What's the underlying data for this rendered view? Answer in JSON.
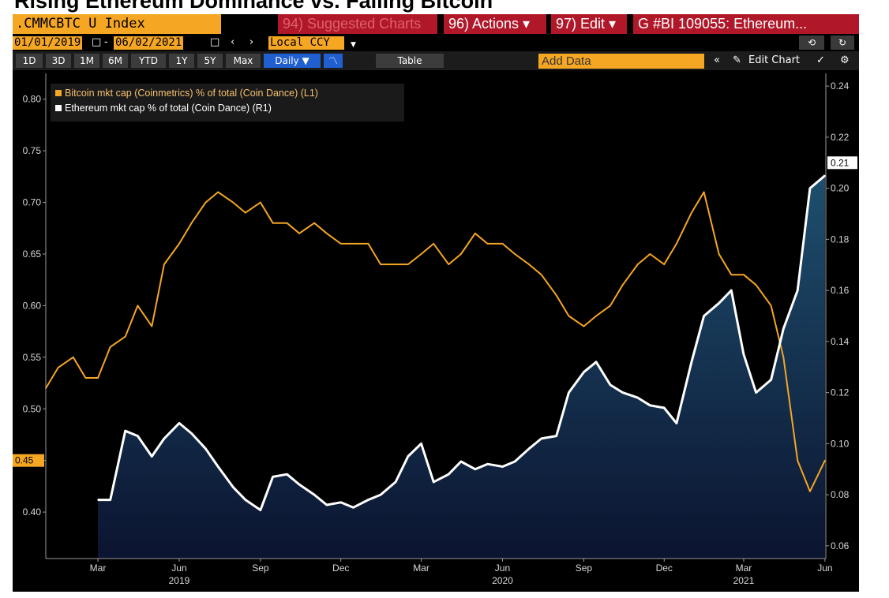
{
  "headline": "Rising Ethereum Dominance vs. Falling Bitcoin",
  "toolbar": {
    "ticker": ".CMMCBTC U Index",
    "suggested": "94) Suggested Charts",
    "actions": "96) Actions ▾",
    "edit": "97) Edit ▾",
    "title": "G #BI 109055: Ethereum..."
  },
  "dates": {
    "start": "01/01/2019",
    "end": "06/02/2021",
    "currency": "Local CCY",
    "back": "⟲",
    "fwd": "↻"
  },
  "periods": [
    "1D",
    "3D",
    "1M",
    "6M",
    "YTD",
    "1Y",
    "5Y",
    "Max"
  ],
  "frequency": "Daily ▼",
  "table_label": "Table",
  "add_data_placeholder": "Add Data",
  "edit_chart": "Edit Chart",
  "legend": {
    "btc": "Bitcoin mkt cap (Coinmetrics) % of total (Coin Dance) (L1)",
    "eth": "Ethereum mkt cap % of total (Coin Dance) (R1)"
  },
  "colors": {
    "btc": "#f5a623",
    "eth": "#ffffff",
    "fill_top": "#1e4f6e",
    "fill_bottom": "#0b1430",
    "accent": "#b0182a"
  },
  "chart_data": {
    "type": "line",
    "x_range": [
      "2019-01-01",
      "2021-06-02"
    ],
    "x_ticks": [
      "Mar",
      "Jun",
      "Sep",
      "Dec",
      "Mar",
      "Jun",
      "Sep",
      "Dec",
      "Mar",
      "Jun"
    ],
    "x_years": [
      "2019",
      "2020",
      "2021"
    ],
    "y_left": {
      "ticks": [
        "0.80",
        "0.75",
        "0.70",
        "0.65",
        "0.60",
        "0.55",
        "0.50",
        "0.45",
        "0.40"
      ],
      "range": [
        0.355,
        0.825
      ],
      "last_label": "0.45"
    },
    "y_right": {
      "ticks": [
        "0.24",
        "0.22",
        "0.20",
        "0.18",
        "0.16",
        "0.14",
        "0.12",
        "0.10",
        "0.08",
        "0.06"
      ],
      "range": [
        0.055,
        0.245
      ],
      "last_label": "0.21"
    },
    "series": [
      {
        "name": "Bitcoin mkt cap (Coinmetrics) % of total (Coin Dance) (L1)",
        "axis": "left",
        "x": [
          "2019-01-01",
          "2019-01-15",
          "2019-02-01",
          "2019-02-15",
          "2019-03-01",
          "2019-03-15",
          "2019-04-01",
          "2019-04-15",
          "2019-05-01",
          "2019-05-15",
          "2019-06-01",
          "2019-06-15",
          "2019-07-01",
          "2019-07-15",
          "2019-08-01",
          "2019-08-15",
          "2019-09-01",
          "2019-09-15",
          "2019-10-01",
          "2019-10-15",
          "2019-11-01",
          "2019-11-15",
          "2019-12-01",
          "2019-12-15",
          "2020-01-01",
          "2020-01-15",
          "2020-02-01",
          "2020-02-15",
          "2020-03-01",
          "2020-03-15",
          "2020-04-01",
          "2020-04-15",
          "2020-05-01",
          "2020-05-15",
          "2020-06-01",
          "2020-06-15",
          "2020-07-01",
          "2020-07-15",
          "2020-08-01",
          "2020-08-15",
          "2020-09-01",
          "2020-09-15",
          "2020-10-01",
          "2020-10-15",
          "2020-11-01",
          "2020-11-15",
          "2020-12-01",
          "2020-12-15",
          "2021-01-01",
          "2021-01-15",
          "2021-02-01",
          "2021-02-15",
          "2021-03-01",
          "2021-03-15",
          "2021-04-01",
          "2021-04-15",
          "2021-05-01",
          "2021-05-15",
          "2021-06-01"
        ],
        "values": [
          0.52,
          0.54,
          0.55,
          0.53,
          0.53,
          0.56,
          0.57,
          0.6,
          0.58,
          0.64,
          0.66,
          0.68,
          0.7,
          0.71,
          0.7,
          0.69,
          0.7,
          0.68,
          0.68,
          0.67,
          0.68,
          0.67,
          0.66,
          0.66,
          0.66,
          0.64,
          0.64,
          0.64,
          0.65,
          0.66,
          0.64,
          0.65,
          0.67,
          0.66,
          0.66,
          0.65,
          0.64,
          0.63,
          0.61,
          0.59,
          0.58,
          0.59,
          0.6,
          0.62,
          0.64,
          0.65,
          0.64,
          0.66,
          0.69,
          0.71,
          0.65,
          0.63,
          0.63,
          0.62,
          0.6,
          0.55,
          0.45,
          0.42,
          0.45
        ]
      },
      {
        "name": "Ethereum mkt cap % of total (Coin Dance) (R1)",
        "axis": "right",
        "x": [
          "2019-03-01",
          "2019-03-15",
          "2019-04-01",
          "2019-04-15",
          "2019-05-01",
          "2019-05-15",
          "2019-06-01",
          "2019-06-15",
          "2019-07-01",
          "2019-07-15",
          "2019-08-01",
          "2019-08-15",
          "2019-09-01",
          "2019-09-15",
          "2019-10-01",
          "2019-10-15",
          "2019-11-01",
          "2019-11-15",
          "2019-12-01",
          "2019-12-15",
          "2020-01-01",
          "2020-01-15",
          "2020-02-01",
          "2020-02-15",
          "2020-03-01",
          "2020-03-15",
          "2020-04-01",
          "2020-04-15",
          "2020-05-01",
          "2020-05-15",
          "2020-06-01",
          "2020-06-15",
          "2020-07-01",
          "2020-07-15",
          "2020-08-01",
          "2020-08-15",
          "2020-09-01",
          "2020-09-15",
          "2020-10-01",
          "2020-10-15",
          "2020-11-01",
          "2020-11-15",
          "2020-12-01",
          "2020-12-15",
          "2021-01-01",
          "2021-01-15",
          "2021-02-01",
          "2021-02-15",
          "2021-03-01",
          "2021-03-15",
          "2021-04-01",
          "2021-04-15",
          "2021-05-01",
          "2021-05-15",
          "2021-06-01"
        ],
        "values": [
          0.078,
          0.078,
          0.105,
          0.103,
          0.095,
          0.102,
          0.108,
          0.104,
          0.098,
          0.091,
          0.083,
          0.078,
          0.074,
          0.087,
          0.088,
          0.084,
          0.08,
          0.076,
          0.077,
          0.075,
          0.078,
          0.08,
          0.085,
          0.095,
          0.1,
          0.085,
          0.088,
          0.093,
          0.09,
          0.092,
          0.091,
          0.093,
          0.098,
          0.102,
          0.103,
          0.12,
          0.128,
          0.132,
          0.123,
          0.12,
          0.118,
          0.115,
          0.114,
          0.108,
          0.132,
          0.15,
          0.155,
          0.16,
          0.135,
          0.12,
          0.125,
          0.145,
          0.16,
          0.2,
          0.205
        ]
      }
    ]
  }
}
